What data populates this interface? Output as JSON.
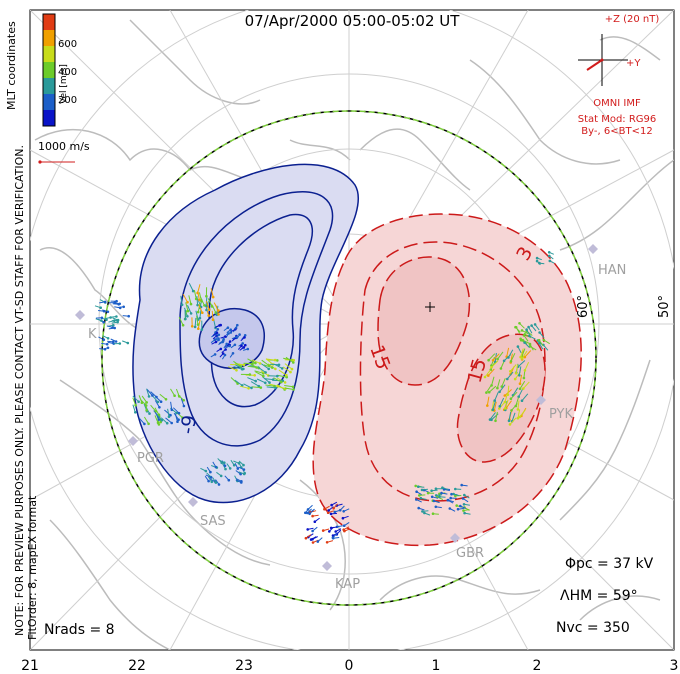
{
  "title": "07/Apr/2000 05:00-05:02 UT",
  "side_notes": {
    "preview": "NOTE: FOR PREVIEW PURPOSES ONLY. PLEASE CONTACT VT-SD STAFF FOR VERIFICATION.",
    "fit_order": "FitOrder: 8, mapEX format",
    "coords": "MLT coordinates"
  },
  "colorbar": {
    "label": "Vel [m/s]",
    "ticks": [
      "600",
      "400",
      "200"
    ],
    "colors": [
      "#0a14c8",
      "#1c5fc8",
      "#2a9a9a",
      "#6ccc2a",
      "#c8dc1a",
      "#f0a000",
      "#e03c14"
    ]
  },
  "velocity_scale": {
    "label": "1000 m/s"
  },
  "imf": {
    "z_label": "+Z (20 nT)",
    "y_label": "+Y",
    "source": "OMNI IMF",
    "model_line1": "Stat Mod: RG96",
    "model_line2": "By-, 6<BT<12"
  },
  "latitude_labels": [
    "60°",
    "50°"
  ],
  "contour_labels": {
    "neg": "-9",
    "pos1": "15",
    "pos2": "15",
    "pos3": "3"
  },
  "stations": [
    "HAN",
    "PYK",
    "GBR",
    "KAP",
    "SAS",
    "PGR",
    "K"
  ],
  "stats": {
    "phi_pc": "Φpc = 37 kV",
    "lambda_hm": "ΛHM = 59°",
    "n_vc": "Nvc = 350",
    "n_rads": "Nrads = 8"
  },
  "mlt_axis": [
    "21",
    "22",
    "23",
    "0",
    "1",
    "2",
    "3"
  ],
  "colors": {
    "neg_cell": "#dadcf2",
    "pos_cell": "#f6d6d6",
    "neg_line": "#0b2090",
    "pos_line": "#cc1a1a",
    "hmb": "#7ccc3a"
  }
}
